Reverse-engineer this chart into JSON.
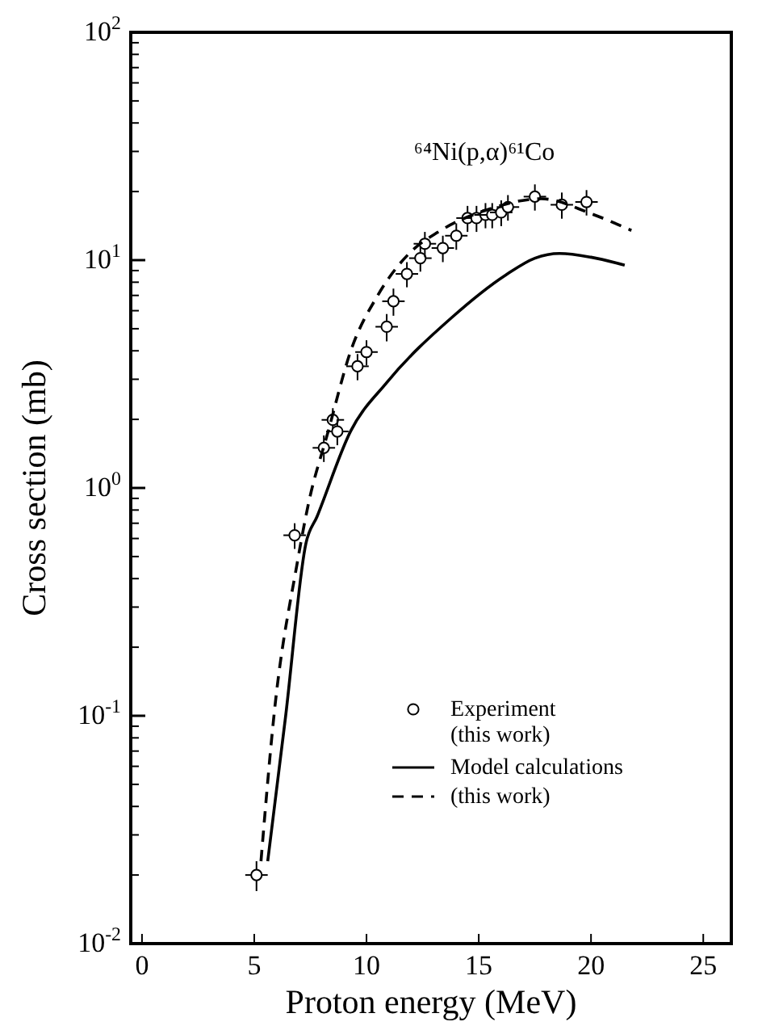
{
  "chart_data": {
    "type": "scatter",
    "xlabel": "Proton energy (MeV)",
    "ylabel": "Cross section (mb)",
    "annotations": [
      "⁶⁴Ni(p,α)⁶¹Co"
    ],
    "log": "y",
    "grid": false,
    "legend": "bottom right",
    "xlim": [
      -0.5,
      26.25
    ],
    "xticks": [
      0,
      5,
      10,
      15,
      20,
      25
    ],
    "ylim": [
      0.01,
      100
    ],
    "yticks": [
      {
        "value": 0.01,
        "label": "10$^{-2}$"
      },
      {
        "value": 0.1,
        "label": "10$^{-1}$"
      },
      {
        "value": 1,
        "label": "10$^{0}$"
      },
      {
        "value": 10,
        "label": "10$^{1}$"
      },
      {
        "value": 100,
        "label": "10$^{2}$"
      }
    ],
    "series": [
      {
        "name": "Experiment (this work)",
        "marker": "circle",
        "color": "#000000",
        "x": [
          5.1,
          6.8,
          8.1,
          8.5,
          8.7,
          9.6,
          10.0,
          10.9,
          11.2,
          11.8,
          12.4,
          12.6,
          13.4,
          14.0,
          14.5,
          14.9,
          15.3,
          15.6,
          16.0,
          16.3,
          17.5,
          18.7,
          19.8
        ],
        "values": [
          0.02,
          0.62,
          1.5,
          1.99,
          1.77,
          3.42,
          3.95,
          5.1,
          6.6,
          8.7,
          10.2,
          11.8,
          11.3,
          12.8,
          15.3,
          15.3,
          15.8,
          15.8,
          16.2,
          17.1,
          19.0,
          17.5,
          18.0
        ],
        "errors": [
          0.003,
          0.08,
          0.2,
          0.25,
          0.23,
          0.45,
          0.5,
          0.7,
          0.9,
          1.1,
          1.3,
          1.5,
          1.5,
          1.7,
          2,
          2,
          2,
          2,
          2.1,
          2.2,
          2.5,
          2.3,
          2.3
        ],
        "xerrors": [
          0.5,
          0.5,
          0.5,
          0.5,
          0.5,
          0.5,
          0.5,
          0.5,
          0.5,
          0.5,
          0.5,
          0.5,
          0.5,
          0.5,
          0.5,
          0.5,
          0.5,
          0.5,
          0.5,
          0.5,
          0.5,
          0.5,
          0.5
        ]
      },
      {
        "name": "Model calculations",
        "type": "line",
        "marker": "none",
        "line_style": "solid",
        "color": "#000000",
        "x": [
          5.6,
          6.4,
          7.3,
          7.8,
          9.3,
          10.9,
          13.8,
          16.2,
          17.5,
          18.6,
          20.0,
          21.5
        ],
        "values": [
          0.023,
          0.1,
          0.57,
          0.75,
          1.78,
          2.9,
          5.6,
          8.6,
          10.2,
          10.7,
          10.3,
          9.5
        ]
      },
      {
        "name": "(this work)",
        "type": "line",
        "marker": "none",
        "line_style": "dashed",
        "color": "#000000",
        "x": [
          5.3,
          5.9,
          6.9,
          7.4,
          8.3,
          9.3,
          10.5,
          11.9,
          13.2,
          15.5,
          17.8,
          20.0,
          21.8
        ],
        "values": [
          0.023,
          0.105,
          0.46,
          0.84,
          1.78,
          4.0,
          7.0,
          10.7,
          13.3,
          16.8,
          18.6,
          16.0,
          13.5
        ]
      }
    ]
  }
}
